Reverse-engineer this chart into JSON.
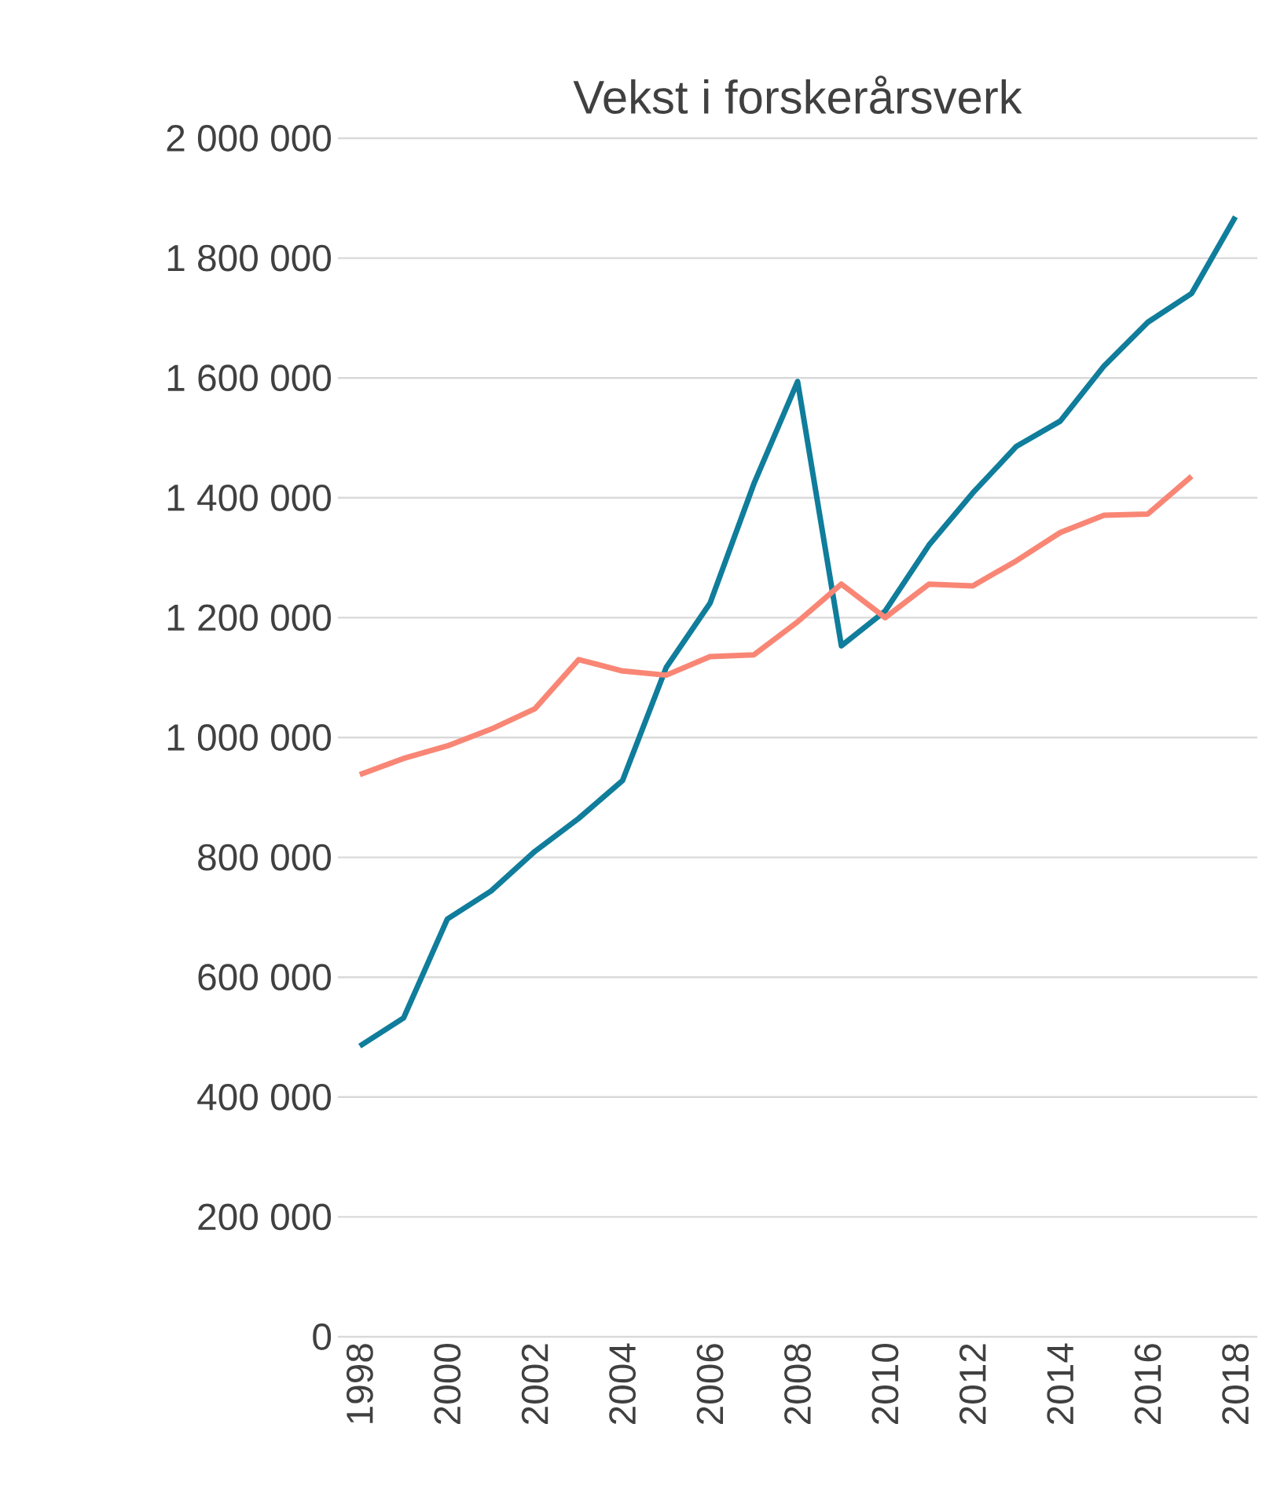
{
  "chart_data": {
    "type": "line",
    "title": "Vekst i forskerårsverk",
    "x": [
      1998,
      1999,
      2000,
      2001,
      2002,
      2003,
      2004,
      2005,
      2006,
      2007,
      2008,
      2009,
      2010,
      2011,
      2012,
      2013,
      2014,
      2015,
      2016,
      2017,
      2018
    ],
    "series": [
      {
        "color": "#0f7d9b",
        "values": [
          485000,
          532000,
          697000,
          744000,
          810000,
          865000,
          928000,
          1117000,
          1224000,
          1423000,
          1594000,
          1153000,
          1211000,
          1321000,
          1408000,
          1486000,
          1528000,
          1620000,
          1693000,
          1741000,
          1869000
        ]
      },
      {
        "color": "#f98675",
        "values": [
          938000,
          965000,
          986000,
          1014000,
          1048000,
          1130000,
          1111000,
          1104000,
          1135000,
          1138000,
          1193000,
          1256000,
          1200000,
          1256000,
          1253000,
          1295000,
          1342000,
          1371000,
          1373000,
          1436000,
          null
        ]
      }
    ],
    "xlim": [
      1997.5,
      2018.5
    ],
    "ylim": [
      0,
      2000000
    ],
    "xticks": [
      1998,
      2000,
      2002,
      2004,
      2006,
      2008,
      2010,
      2012,
      2014,
      2016,
      2018
    ],
    "yticks": [
      {
        "value": 0,
        "label": "0"
      },
      {
        "value": 200000,
        "label": "200 000"
      },
      {
        "value": 400000,
        "label": "400 000"
      },
      {
        "value": 600000,
        "label": "600 000"
      },
      {
        "value": 800000,
        "label": "800 000"
      },
      {
        "value": 1000000,
        "label": "1 000 000"
      },
      {
        "value": 1200000,
        "label": "1 200 000"
      },
      {
        "value": 1400000,
        "label": "1 400 000"
      },
      {
        "value": 1600000,
        "label": "1 600 000"
      },
      {
        "value": 1800000,
        "label": "1 800 000"
      },
      {
        "value": 2000000,
        "label": "2 000 000"
      }
    ],
    "grid": "y"
  }
}
